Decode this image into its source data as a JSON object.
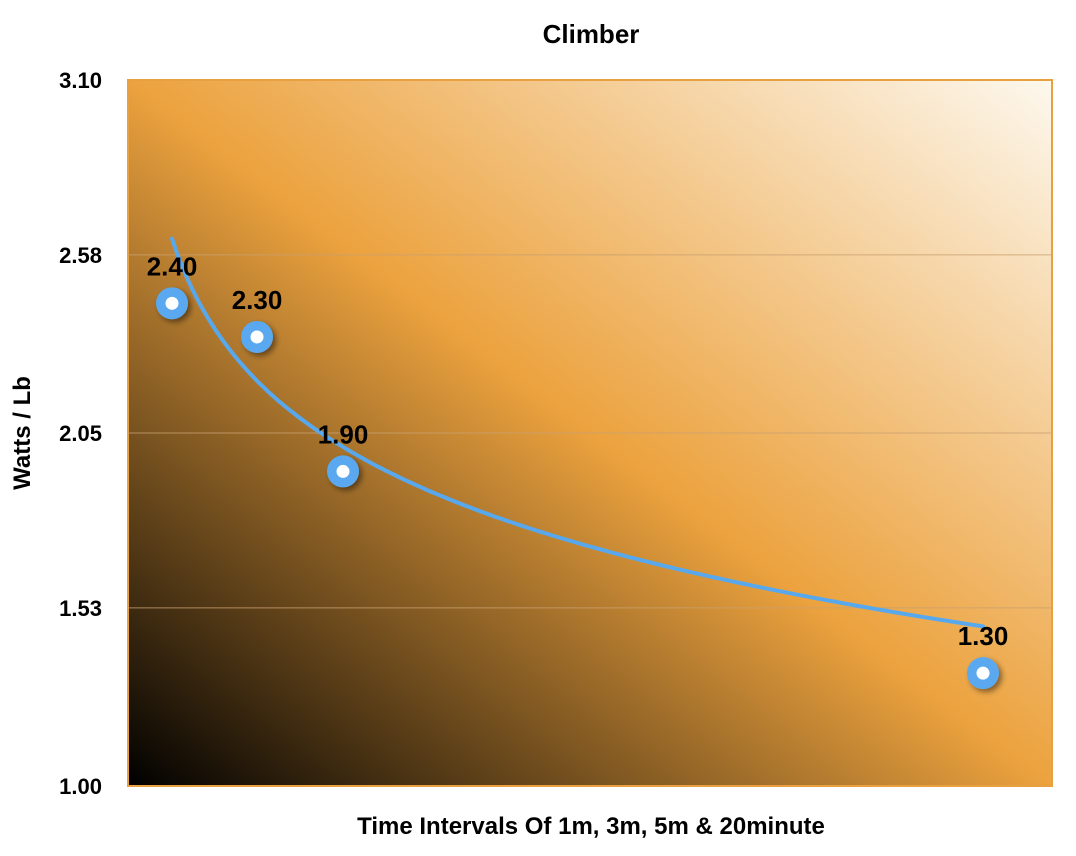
{
  "chart_data": {
    "type": "scatter",
    "title": "Climber",
    "xlabel": "Time Intervals Of 1m, 3m, 5m & 20minute",
    "ylabel": "Watts / Lb",
    "ylim": [
      1.0,
      3.1
    ],
    "yticks": [
      "1.00",
      "1.53",
      "2.05",
      "2.58",
      "3.10"
    ],
    "grid": true,
    "legend": "none",
    "x": [
      1,
      3,
      5,
      20
    ],
    "series": [
      {
        "values": [
          2.4,
          2.3,
          1.9,
          1.3
        ],
        "labels": [
          "2.40",
          "2.30",
          "1.90",
          "1.30"
        ],
        "trendline": "logarithmic"
      }
    ],
    "colors": {
      "marker": "#5aa9f0",
      "trendline": "#58a8ee",
      "plot_border": "#e8a040",
      "background_light": "#fdf8ee",
      "background_mid": "#eca23e",
      "background_dark": "#000000",
      "gridline": "#c9a070"
    }
  }
}
